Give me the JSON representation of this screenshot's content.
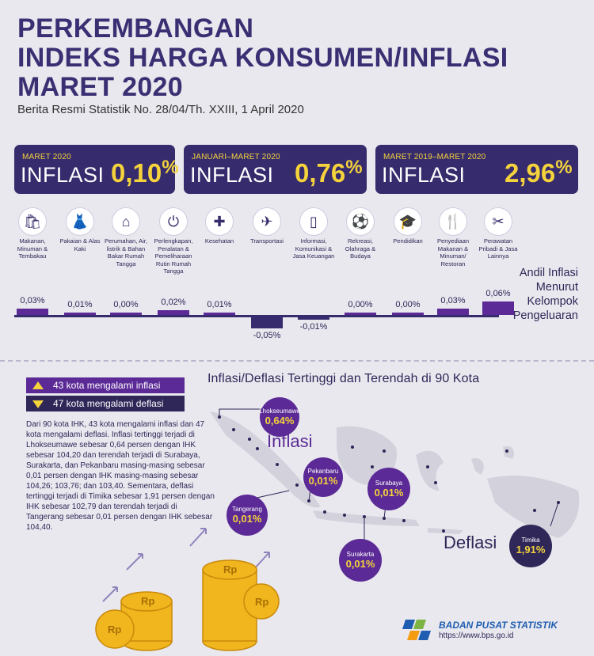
{
  "header": {
    "title_lines": [
      "PERKEMBANGAN",
      "INDEKS HARGA KONSUMEN/INFLASI",
      "MARET 2020"
    ],
    "subtitle": "Berita Resmi Statistik No. 28/04/Th. XXIII, 1 April 2020"
  },
  "cards": [
    {
      "period": "MARET 2020",
      "word": "INFLASI",
      "value": "0,10",
      "unit": "%"
    },
    {
      "period": "JANUARI–MARET 2020",
      "word": "INFLASI",
      "value": "0,76",
      "unit": "%"
    },
    {
      "period": "MARET 2019–MARET 2020",
      "word": "INFLASI",
      "value": "2,96",
      "unit": "%"
    }
  ],
  "groups": [
    {
      "label": "Makanan, Minuman & Tembakau",
      "icon": "shopping-bag-icon",
      "glyph": "🛍",
      "andil": "0,03%",
      "andil_value": 0.03
    },
    {
      "label": "Pakaian & Alas Kaki",
      "icon": "dress-icon",
      "glyph": "👗",
      "andil": "0,01%",
      "andil_value": 0.01
    },
    {
      "label": "Perumahan, Air, listrik & Bahan Bakar Rumah Tangga",
      "icon": "house-icon",
      "glyph": "⌂",
      "andil": "0,00%",
      "andil_value": 0.0
    },
    {
      "label": "Perlengkapan, Peralatan & Pemeliharaan Rutin Rumah Tangga",
      "icon": "plug-icon",
      "glyph": "⏻",
      "andil": "0,02%",
      "andil_value": 0.02
    },
    {
      "label": "Kesehatan",
      "icon": "medical-kit-icon",
      "glyph": "✚",
      "andil": "0,01%",
      "andil_value": 0.01
    },
    {
      "label": "Transportasi",
      "icon": "airplane-icon",
      "glyph": "✈",
      "andil": "-0,05%",
      "andil_value": -0.05
    },
    {
      "label": "Informasi, Komunikasi & Jasa Keuangan",
      "icon": "phone-icon",
      "glyph": "▯",
      "andil": "-0,01%",
      "andil_value": -0.01
    },
    {
      "label": "Rekreasi, Olahraga & Budaya",
      "icon": "soccer-icon",
      "glyph": "⚽",
      "andil": "0,00%",
      "andil_value": 0.0
    },
    {
      "label": "Pendidikan",
      "icon": "graduation-cap-icon",
      "glyph": "🎓",
      "andil": "0,00%",
      "andil_value": 0.0
    },
    {
      "label": "Penyediaan Makanan & Minuman/ Restoran",
      "icon": "food-drink-icon",
      "glyph": "🍴",
      "andil": "0,03%",
      "andil_value": 0.03
    },
    {
      "label": "Perawatan Pribadi & Jasa Lainnya",
      "icon": "scissors-comb-icon",
      "glyph": "✂",
      "andil": "0,06%",
      "andil_value": 0.06
    }
  ],
  "andil_title_lines": [
    "Andil Inflasi",
    "Menurut",
    "Kelompok",
    "Pengeluaran"
  ],
  "legend": {
    "inflasi": "43 kota mengalami inflasi",
    "deflasi": "47 kota mengalami deflasi"
  },
  "body_text": "Dari 90 kota IHK, 43 kota mengalami inflasi dan 47 kota mengalami deflasi. Inflasi tertinggi terjadi di Lhokseumawe sebesar 0,64 persen dengan IHK sebesar 104,20 dan terendah terjadi di Surabaya, Surakarta, dan Pekanbaru masing-masing sebesar 0,01 persen dengan IHK masing-masing sebesar 104,26; 103,76; dan 103,40. Sementara, deflasi tertinggi terjadi di Timika sebesar 1,91 persen dengan IHK sebesar 102,79 dan terendah terjadi di Tangerang sebesar 0,01 persen dengan IHK sebesar 104,40.",
  "map": {
    "title": "Inflasi/Deflasi Tertinggi dan Terendah di 90 Kota",
    "word_inflasi": "Inflasi",
    "word_deflasi": "Deflasi",
    "cities": [
      {
        "name": "Lhokseumawe",
        "value": "0,64%"
      },
      {
        "name": "Pekanbaru",
        "value": "0,01%"
      },
      {
        "name": "Surabaya",
        "value": "0,01%"
      },
      {
        "name": "Tangerang",
        "value": "0,01%"
      },
      {
        "name": "Surakarta",
        "value": "0,01%"
      },
      {
        "name": "Timika",
        "value": "1,91%"
      }
    ]
  },
  "footer": {
    "org": "BADAN PUSAT STATISTIK",
    "url": "https://www.bps.go.id"
  },
  "colors": {
    "navy": "#362b6c",
    "purple": "#5b2a96",
    "yellow": "#f5d33c",
    "bg": "#e9e8ee"
  }
}
